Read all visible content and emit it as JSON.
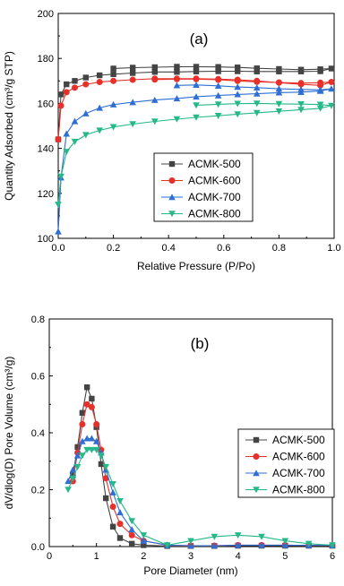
{
  "chart_data": [
    {
      "type": "line",
      "panel_label": "(a)",
      "xlabel": "Relative Pressure (P/Po)",
      "ylabel": "Quantity Adsorbed (cm³/g STP)",
      "xlim": [
        0,
        1.0
      ],
      "ylim": [
        100,
        200
      ],
      "xticks": [
        "0.0",
        "0.2",
        "0.4",
        "0.6",
        "0.8",
        "1.0"
      ],
      "yticks": [
        "100",
        "120",
        "140",
        "160",
        "180",
        "200"
      ],
      "legend_position": "bottom-center",
      "series": [
        {
          "name": "ACMK-500",
          "color": "#444444",
          "marker": "square",
          "x": [
            0.0,
            0.01,
            0.03,
            0.06,
            0.1,
            0.15,
            0.2,
            0.27,
            0.35,
            0.43,
            0.5,
            0.58,
            0.65,
            0.72,
            0.8,
            0.88,
            0.95,
            0.99,
            0.95,
            0.88,
            0.8,
            0.72,
            0.65,
            0.58,
            0.5,
            0.43,
            0.35,
            0.27,
            0.2
          ],
          "y": [
            144,
            164,
            168.5,
            170,
            171.5,
            172.5,
            173,
            173.5,
            174,
            174,
            174.2,
            174.3,
            174.3,
            174.2,
            174.2,
            174.2,
            174.3,
            175.5,
            175.2,
            175,
            175.3,
            175.6,
            176,
            176.2,
            176.3,
            176.3,
            176.1,
            175.9,
            175.5
          ]
        },
        {
          "name": "ACMK-600",
          "color": "#e8302a",
          "marker": "circle",
          "x": [
            0.0,
            0.01,
            0.03,
            0.06,
            0.1,
            0.15,
            0.2,
            0.27,
            0.35,
            0.43,
            0.5,
            0.58,
            0.65,
            0.72,
            0.8,
            0.88,
            0.95,
            0.99,
            0.95,
            0.88,
            0.8,
            0.72,
            0.65,
            0.58,
            0.5,
            0.43,
            0.35
          ],
          "y": [
            144,
            159,
            165,
            167,
            168.5,
            169.5,
            170,
            170.5,
            171,
            171,
            171,
            170.8,
            170.5,
            170,
            169.2,
            168.5,
            168,
            169.5,
            169.2,
            169,
            169.3,
            169.6,
            170,
            170.5,
            170.8,
            170.8,
            170.6
          ]
        },
        {
          "name": "ACMK-700",
          "color": "#2f6fd4",
          "marker": "triangle-up",
          "x": [
            0.0,
            0.01,
            0.03,
            0.06,
            0.1,
            0.15,
            0.2,
            0.27,
            0.35,
            0.43,
            0.5,
            0.58,
            0.65,
            0.72,
            0.8,
            0.88,
            0.95,
            0.99,
            0.95,
            0.88,
            0.8,
            0.72,
            0.65,
            0.58,
            0.5,
            0.43
          ],
          "y": [
            103,
            127,
            146.5,
            152,
            155.5,
            158,
            159.5,
            160.5,
            161.5,
            162.2,
            163,
            163.5,
            164,
            164.3,
            164.8,
            165,
            165.5,
            166.5,
            166,
            166.2,
            166.5,
            167,
            167.3,
            167.8,
            168.2,
            168
          ]
        },
        {
          "name": "ACMK-800",
          "color": "#25b888",
          "marker": "triangle-down",
          "x": [
            0.0,
            0.01,
            0.03,
            0.06,
            0.1,
            0.15,
            0.2,
            0.27,
            0.35,
            0.43,
            0.5,
            0.58,
            0.65,
            0.72,
            0.8,
            0.88,
            0.95,
            0.99,
            0.95,
            0.88,
            0.8,
            0.72,
            0.65,
            0.58,
            0.5
          ],
          "y": [
            115,
            127.5,
            138.5,
            143,
            146,
            148,
            149.5,
            150.8,
            152,
            153,
            153.8,
            154.5,
            155.2,
            155.8,
            156.5,
            157.2,
            157.8,
            159,
            159.5,
            159.7,
            159.8,
            160,
            159.9,
            159.6,
            159.2
          ]
        }
      ]
    },
    {
      "type": "line",
      "panel_label": "(b)",
      "xlabel": "Pore Diameter (nm)",
      "ylabel": "dV/dlog(D) Pore Volume (cm³/g)",
      "xlim": [
        0,
        6
      ],
      "ylim": [
        0.0,
        0.8
      ],
      "xticks": [
        "0",
        "1",
        "2",
        "3",
        "4",
        "5",
        "6"
      ],
      "yticks": [
        "0.0",
        "0.2",
        "0.4",
        "0.6",
        "0.8"
      ],
      "legend_position": "right",
      "series": [
        {
          "name": "ACMK-500",
          "color": "#444444",
          "marker": "square",
          "x": [
            0.5,
            0.6,
            0.7,
            0.8,
            0.9,
            1.0,
            1.1,
            1.2,
            1.35,
            1.5,
            1.75,
            2.0,
            2.5,
            3.0,
            3.5,
            4.0,
            4.5,
            5.0,
            5.5,
            6.0
          ],
          "y": [
            0.25,
            0.35,
            0.47,
            0.56,
            0.52,
            0.42,
            0.29,
            0.17,
            0.07,
            0.03,
            0.01,
            0.005,
            0.002,
            0.002,
            0.002,
            0.003,
            0.003,
            0.003,
            0.003,
            0.003
          ]
        },
        {
          "name": "ACMK-600",
          "color": "#e8302a",
          "marker": "circle",
          "x": [
            0.5,
            0.6,
            0.7,
            0.8,
            0.9,
            1.0,
            1.1,
            1.2,
            1.35,
            1.5,
            1.75,
            2.0,
            2.5,
            3.0,
            3.5,
            4.0,
            4.5,
            5.0,
            5.5,
            6.0
          ],
          "y": [
            0.23,
            0.33,
            0.43,
            0.5,
            0.49,
            0.43,
            0.34,
            0.24,
            0.14,
            0.08,
            0.04,
            0.02,
            0.005,
            0.003,
            0.003,
            0.005,
            0.005,
            0.005,
            0.004,
            0.004
          ]
        },
        {
          "name": "ACMK-700",
          "color": "#2f6fd4",
          "marker": "triangle-up",
          "x": [
            0.4,
            0.5,
            0.6,
            0.7,
            0.8,
            0.9,
            1.0,
            1.1,
            1.2,
            1.35,
            1.5,
            1.75,
            2.0,
            2.5,
            3.0,
            3.5,
            4.0,
            4.5,
            5.0,
            5.5,
            6.0
          ],
          "y": [
            0.23,
            0.27,
            0.32,
            0.37,
            0.38,
            0.38,
            0.37,
            0.33,
            0.27,
            0.19,
            0.12,
            0.06,
            0.02,
            0.005,
            0.003,
            0.003,
            0.005,
            0.005,
            0.005,
            0.004,
            0.004
          ]
        },
        {
          "name": "ACMK-800",
          "color": "#25b888",
          "marker": "triangle-down",
          "x": [
            0.4,
            0.5,
            0.6,
            0.7,
            0.8,
            0.9,
            1.0,
            1.1,
            1.2,
            1.35,
            1.5,
            1.75,
            2.0,
            2.5,
            3.0,
            3.5,
            4.0,
            4.5,
            5.0,
            5.5,
            6.0
          ],
          "y": [
            0.2,
            0.24,
            0.28,
            0.32,
            0.34,
            0.34,
            0.34,
            0.32,
            0.28,
            0.22,
            0.16,
            0.09,
            0.04,
            0.005,
            0.02,
            0.035,
            0.04,
            0.035,
            0.02,
            0.01,
            0.005
          ]
        }
      ]
    }
  ]
}
